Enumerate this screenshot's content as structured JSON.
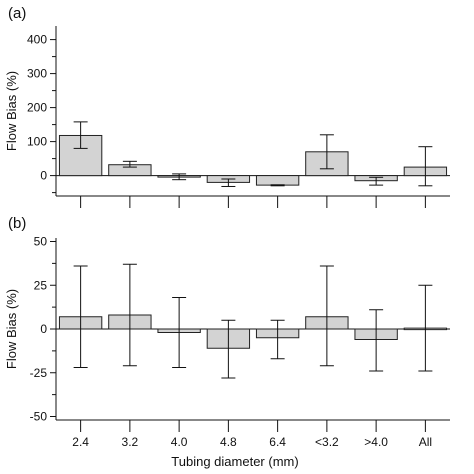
{
  "chart_data": [
    {
      "panel_label": "(a)",
      "type": "bar",
      "categories": [
        "2.4",
        "3.2",
        "4.0",
        "4.8",
        "6.4",
        "<3.2",
        ">4.0",
        "All"
      ],
      "values": [
        118,
        32,
        -3,
        -20,
        -28,
        70,
        -15,
        25
      ],
      "error_low": [
        80,
        25,
        -12,
        -32,
        -30,
        20,
        -28,
        -30
      ],
      "error_high": [
        158,
        42,
        5,
        -10,
        -27,
        120,
        -5,
        85
      ],
      "ylabel": "Flow Bias (%)",
      "ylim": [
        -60,
        440
      ],
      "yticks": [
        0,
        100,
        200,
        300,
        400
      ],
      "show_category_labels": false
    },
    {
      "panel_label": "(b)",
      "type": "bar",
      "categories": [
        "2.4",
        "3.2",
        "4.0",
        "4.8",
        "6.4",
        "<3.2",
        ">4.0",
        "All"
      ],
      "values": [
        7,
        8,
        -2,
        -11,
        -5,
        7,
        -6,
        0.5
      ],
      "error_low": [
        -22,
        -21,
        -22,
        -28,
        -17,
        -21,
        -24,
        -24
      ],
      "error_high": [
        36,
        37,
        18,
        5,
        5,
        36,
        11,
        25
      ],
      "ylabel": "Flow Bias (%)",
      "xlabel": "Tubing diameter (mm)",
      "ylim": [
        -52,
        52
      ],
      "yticks": [
        -50,
        -25,
        0,
        25,
        50
      ],
      "show_category_labels": true
    }
  ],
  "colors": {
    "bar_fill": "#d3d3d3",
    "bar_stroke": "#222222",
    "axis": "#111111",
    "error_bar": "#111111"
  }
}
